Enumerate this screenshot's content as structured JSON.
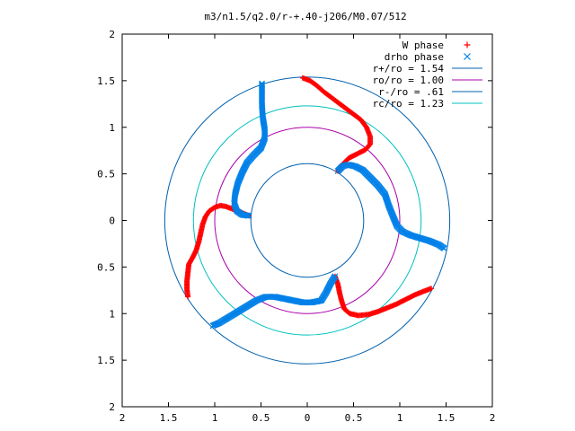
{
  "chart_data": {
    "type": "scatter",
    "title": "m3/n1.5/q2.0/r-+.40-j206/M0.07/512",
    "xlim": [
      -2,
      2
    ],
    "ylim": [
      -2,
      2
    ],
    "x_tick_labels": [
      "2",
      "1.5",
      "1",
      "0.5",
      "0",
      "0.5",
      "1",
      "1.5",
      "2"
    ],
    "y_tick_labels": [
      "2",
      "1.5",
      "1",
      "0.5",
      "0",
      "0.5",
      "1",
      "1.5",
      "2"
    ],
    "x_tick_values": [
      -2,
      -1.5,
      -1,
      -0.5,
      0,
      0.5,
      1,
      1.5,
      2
    ],
    "y_tick_values": [
      2,
      1.5,
      1,
      0.5,
      0,
      -0.5,
      -1,
      -1.5,
      -2
    ],
    "grid": false,
    "legend_position": "top-right",
    "series": [
      {
        "name": "W phase",
        "marker": "plus",
        "color": "#ff0000",
        "arms": [
          [
            [
              -0.05,
              1.53
            ],
            [
              0.03,
              1.5
            ],
            [
              0.1,
              1.45
            ],
            [
              0.18,
              1.38
            ],
            [
              0.26,
              1.32
            ],
            [
              0.34,
              1.26
            ],
            [
              0.42,
              1.2
            ],
            [
              0.5,
              1.14
            ],
            [
              0.58,
              1.08
            ],
            [
              0.64,
              1.0
            ],
            [
              0.68,
              0.9
            ],
            [
              0.68,
              0.82
            ],
            [
              0.63,
              0.76
            ],
            [
              0.55,
              0.72
            ],
            [
              0.45,
              0.67
            ],
            [
              0.38,
              0.6
            ],
            [
              0.33,
              0.53
            ]
          ],
          [
            [
              -0.63,
              0.05
            ],
            [
              -0.7,
              0.08
            ],
            [
              -0.8,
              0.12
            ],
            [
              -0.88,
              0.15
            ],
            [
              -0.94,
              0.16
            ],
            [
              -1.0,
              0.14
            ],
            [
              -1.06,
              0.1
            ],
            [
              -1.1,
              0.04
            ],
            [
              -1.13,
              -0.04
            ],
            [
              -1.15,
              -0.13
            ],
            [
              -1.17,
              -0.22
            ],
            [
              -1.2,
              -0.32
            ],
            [
              -1.24,
              -0.4
            ],
            [
              -1.28,
              -0.47
            ],
            [
              -1.29,
              -0.56
            ],
            [
              -1.3,
              -0.65
            ],
            [
              -1.3,
              -0.74
            ],
            [
              -1.29,
              -0.82
            ]
          ],
          [
            [
              0.3,
              -0.6
            ],
            [
              0.33,
              -0.68
            ],
            [
              0.35,
              -0.78
            ],
            [
              0.37,
              -0.86
            ],
            [
              0.4,
              -0.95
            ],
            [
              0.46,
              -1.0
            ],
            [
              0.55,
              -1.02
            ],
            [
              0.66,
              -1.01
            ],
            [
              0.76,
              -0.98
            ],
            [
              0.86,
              -0.94
            ],
            [
              0.96,
              -0.9
            ],
            [
              1.06,
              -0.85
            ],
            [
              1.16,
              -0.8
            ],
            [
              1.26,
              -0.76
            ],
            [
              1.34,
              -0.73
            ]
          ]
        ]
      },
      {
        "name": "drho phase",
        "marker": "cross",
        "color": "#0080e8",
        "arms": [
          [
            [
              0.33,
              0.53
            ],
            [
              0.38,
              0.58
            ],
            [
              0.44,
              0.6
            ],
            [
              0.52,
              0.58
            ],
            [
              0.6,
              0.54
            ],
            [
              0.68,
              0.46
            ],
            [
              0.76,
              0.38
            ],
            [
              0.84,
              0.28
            ],
            [
              0.88,
              0.16
            ],
            [
              0.92,
              0.06
            ],
            [
              0.97,
              -0.06
            ],
            [
              1.03,
              -0.12
            ],
            [
              1.12,
              -0.16
            ],
            [
              1.22,
              -0.19
            ],
            [
              1.32,
              -0.22
            ],
            [
              1.42,
              -0.26
            ],
            [
              1.48,
              -0.3
            ]
          ],
          [
            [
              -0.63,
              0.05
            ],
            [
              -0.7,
              0.06
            ],
            [
              -0.76,
              0.1
            ],
            [
              -0.79,
              0.18
            ],
            [
              -0.78,
              0.28
            ],
            [
              -0.75,
              0.4
            ],
            [
              -0.7,
              0.52
            ],
            [
              -0.65,
              0.62
            ],
            [
              -0.58,
              0.7
            ],
            [
              -0.5,
              0.78
            ],
            [
              -0.46,
              0.88
            ],
            [
              -0.46,
              0.98
            ],
            [
              -0.48,
              1.1
            ],
            [
              -0.49,
              1.24
            ],
            [
              -0.49,
              1.38
            ],
            [
              -0.49,
              1.47
            ]
          ],
          [
            [
              0.3,
              -0.6
            ],
            [
              0.25,
              -0.68
            ],
            [
              0.2,
              -0.78
            ],
            [
              0.15,
              -0.86
            ],
            [
              0.05,
              -0.88
            ],
            [
              -0.05,
              -0.88
            ],
            [
              -0.15,
              -0.86
            ],
            [
              -0.25,
              -0.84
            ],
            [
              -0.35,
              -0.82
            ],
            [
              -0.45,
              -0.82
            ],
            [
              -0.55,
              -0.86
            ],
            [
              -0.65,
              -0.92
            ],
            [
              -0.75,
              -0.98
            ],
            [
              -0.85,
              -1.04
            ],
            [
              -0.95,
              -1.1
            ],
            [
              -1.02,
              -1.13
            ]
          ]
        ]
      },
      {
        "name": "r+/ro = 1.54",
        "kind": "circle",
        "radius": 1.54,
        "color": "#0060ad"
      },
      {
        "name": "ro/ro = 1.00",
        "kind": "circle",
        "radius": 1.0,
        "color": "#aa00aa"
      },
      {
        "name": "r-/ro = .61",
        "kind": "circle",
        "radius": 0.61,
        "color": "#0060ad"
      },
      {
        "name": "rc/ro = 1.23",
        "kind": "circle",
        "radius": 1.23,
        "color": "#00c0c0"
      }
    ]
  }
}
